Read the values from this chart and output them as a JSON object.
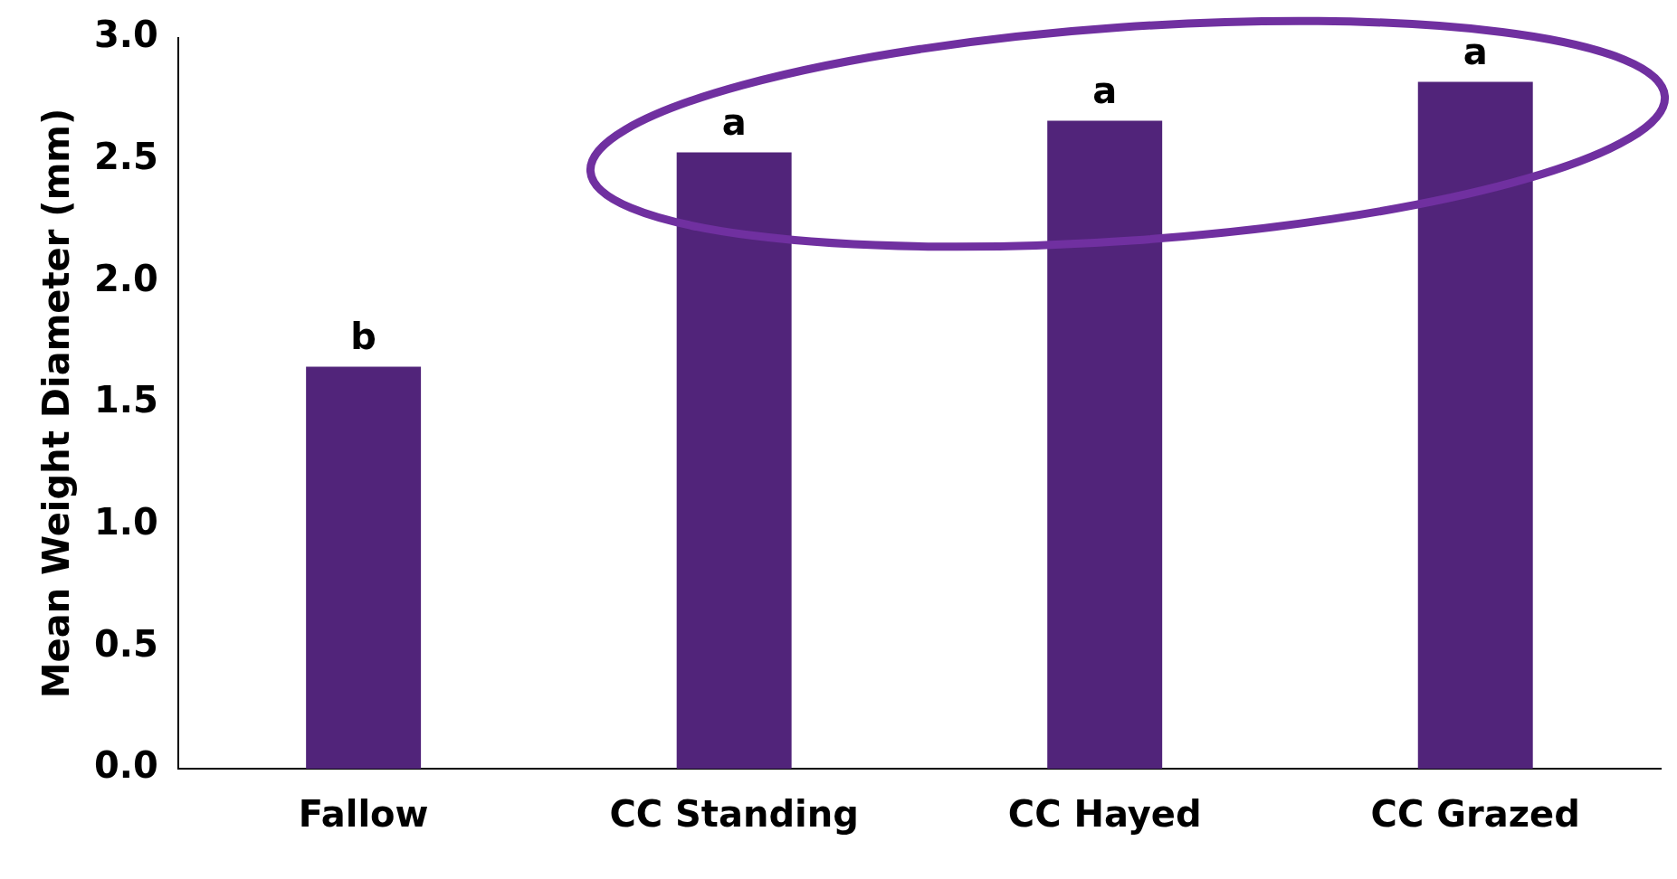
{
  "chart_data": {
    "type": "bar",
    "ylabel": "Mean Weight Diameter (mm)",
    "categories": [
      "Fallow",
      "CC Standing",
      "CC Hayed",
      "CC Grazed"
    ],
    "values": [
      1.65,
      2.53,
      2.66,
      2.82
    ],
    "color": "#51247a",
    "ylim": [
      0,
      3
    ],
    "yticks": [
      {
        "value": 0,
        "label": "0.0"
      },
      {
        "value": 0.5,
        "label": "0.5"
      },
      {
        "value": 1,
        "label": "1.0"
      },
      {
        "value": 1.5,
        "label": "1.5"
      },
      {
        "value": 2,
        "label": "2.0"
      },
      {
        "value": 2.5,
        "label": "2.5"
      },
      {
        "value": 3,
        "label": "3.0"
      }
    ],
    "grid": false,
    "legend": false,
    "annotations": [
      {
        "text": "b",
        "x": "Fallow",
        "y": 1.65
      },
      {
        "text": "a",
        "x": "CC Standing",
        "y": 2.53
      },
      {
        "text": "a",
        "x": "CC Hayed",
        "y": 2.66
      },
      {
        "text": "a",
        "x": "CC Grazed",
        "y": 2.82
      }
    ]
  }
}
